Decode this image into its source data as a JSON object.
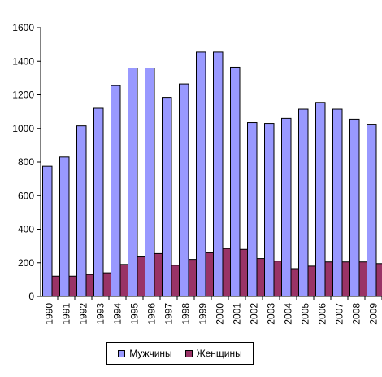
{
  "chart_data": {
    "type": "bar",
    "categories": [
      "1990",
      "1991",
      "1992",
      "1993",
      "1994",
      "1995",
      "1996",
      "1997",
      "1998",
      "1999",
      "2000",
      "2001",
      "2002",
      "2003",
      "2004",
      "2005",
      "2006",
      "2007",
      "2008",
      "2009"
    ],
    "series": [
      {
        "name": "Мужчины",
        "color": "#9999FF",
        "values": [
          775,
          830,
          1015,
          1120,
          1255,
          1360,
          1360,
          1185,
          1265,
          1455,
          1455,
          1365,
          1035,
          1030,
          1060,
          1115,
          1155,
          1115,
          1055,
          1025
        ]
      },
      {
        "name": "Женщины",
        "color": "#993366",
        "values": [
          120,
          120,
          130,
          140,
          190,
          235,
          255,
          185,
          220,
          260,
          285,
          280,
          225,
          210,
          165,
          180,
          205,
          205,
          205,
          195
        ]
      }
    ],
    "title": "",
    "xlabel": "",
    "ylabel": "",
    "ylim": [
      0,
      1600
    ],
    "yticks": [
      0,
      200,
      400,
      600,
      800,
      1000,
      1200,
      1400,
      1600
    ],
    "grid": false,
    "legend_position": "bottom"
  }
}
